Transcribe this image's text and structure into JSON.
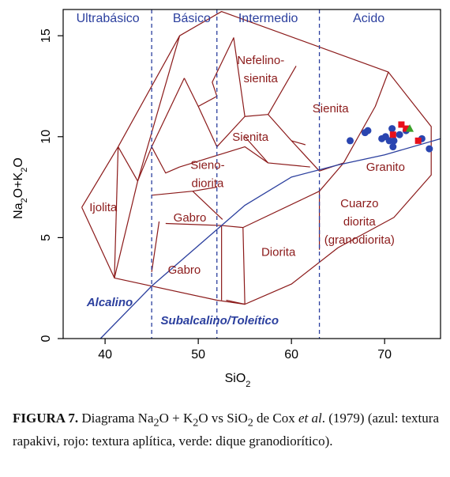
{
  "chart_data": {
    "type": "scatter",
    "xlabel": "SiO2",
    "ylabel": "Na2O+K2O",
    "xlim": [
      35.5,
      76
    ],
    "ylim": [
      0,
      16.3
    ],
    "x_ticks": [
      40,
      50,
      60,
      70
    ],
    "y_ticks": [
      0,
      5,
      10,
      15
    ],
    "colors": {
      "axis": "#000000",
      "fields": "#8b1a1a",
      "divider": "#2b3f9e",
      "labels_blue": "#2b3f9e",
      "labels_red": "#8b1a1a"
    },
    "classes": [
      {
        "label": "Ultrabásico",
        "x": 40.3,
        "y": 15.9
      },
      {
        "label": "Básico",
        "x": 49.3,
        "y": 15.9
      },
      {
        "label": "Intermedio",
        "x": 57.5,
        "y": 15.9
      },
      {
        "label": "Acido",
        "x": 68.3,
        "y": 15.9
      }
    ],
    "class_boundaries_x": [
      45,
      52,
      63
    ],
    "field_boundaries": [
      [
        [
          37.5,
          6.5
        ],
        [
          41,
          3
        ],
        [
          52,
          1.9
        ],
        [
          55,
          1.7
        ],
        [
          60,
          2.7
        ],
        [
          65,
          4.5
        ],
        [
          71,
          6
        ],
        [
          75,
          8.1
        ],
        [
          75,
          10.5
        ],
        [
          70.4,
          13.2
        ],
        [
          52.5,
          16.2
        ],
        [
          48,
          15
        ],
        [
          41.4,
          9.5
        ],
        [
          37.5,
          6.5
        ]
      ],
      [
        [
          41.4,
          9.5
        ],
        [
          41,
          3
        ]
      ],
      [
        [
          41.4,
          9.5
        ],
        [
          43.5,
          7.8
        ],
        [
          41,
          3
        ]
      ],
      [
        [
          43.5,
          7.8
        ],
        [
          48,
          15
        ]
      ],
      [
        [
          45,
          9.5
        ],
        [
          43.5,
          7.8
        ]
      ],
      [
        [
          45,
          9.5
        ],
        [
          46.5,
          8.2
        ],
        [
          48,
          8.5
        ]
      ],
      [
        [
          45,
          9.5
        ],
        [
          48.5,
          12.9
        ]
      ],
      [
        [
          48.5,
          12.9
        ],
        [
          50,
          11.5
        ],
        [
          52,
          9.5
        ],
        [
          55,
          11
        ]
      ],
      [
        [
          50,
          11.5
        ],
        [
          52,
          12
        ]
      ],
      [
        [
          52,
          12
        ],
        [
          51.5,
          12.7
        ],
        [
          53.8,
          14.9
        ],
        [
          55,
          11
        ]
      ],
      [
        [
          55,
          11
        ],
        [
          57.5,
          11.1
        ],
        [
          60,
          9.8
        ],
        [
          63,
          8.3
        ],
        [
          65.6,
          8.7
        ]
      ],
      [
        [
          57.5,
          11.1
        ],
        [
          60.5,
          13.5
        ]
      ],
      [
        [
          60,
          9.8
        ],
        [
          61.5,
          9.6
        ]
      ],
      [
        [
          65.6,
          8.7
        ],
        [
          69,
          11.5
        ],
        [
          70.4,
          13.2
        ]
      ],
      [
        [
          55,
          10
        ],
        [
          57.5,
          8.7
        ],
        [
          62,
          8.5
        ]
      ],
      [
        [
          48,
          8.5
        ],
        [
          55,
          9.5
        ],
        [
          57.5,
          8.7
        ]
      ],
      [
        [
          45,
          7.1
        ],
        [
          49.4,
          7.3
        ],
        [
          52,
          7.5
        ]
      ],
      [
        [
          49.4,
          7.3
        ],
        [
          52.6,
          5.9
        ]
      ],
      [
        [
          46.5,
          5.7
        ],
        [
          52.5,
          5.6
        ]
      ],
      [
        [
          52.5,
          5.6
        ],
        [
          52.5,
          1.9
        ]
      ],
      [
        [
          45.8,
          5.8
        ],
        [
          45,
          3.3
        ]
      ],
      [
        [
          52.5,
          5.6
        ],
        [
          54.8,
          5.5
        ],
        [
          55,
          1.7
        ]
      ],
      [
        [
          54.8,
          5.5
        ],
        [
          63,
          7.3
        ],
        [
          63,
          4.4
        ]
      ],
      [
        [
          63,
          7.3
        ],
        [
          65.6,
          8.7
        ]
      ],
      [
        [
          55,
          1.7
        ],
        [
          53,
          1.9
        ]
      ]
    ],
    "field_labels": [
      {
        "label": "Nefelino-",
        "x": 56.7,
        "y": 13.8
      },
      {
        "label": "sienita",
        "x": 56.7,
        "y": 12.9
      },
      {
        "label": "Sienita",
        "x": 64.2,
        "y": 11.4
      },
      {
        "label": "Sienita",
        "x": 55.6,
        "y": 10.0
      },
      {
        "label": "Sieno-",
        "x": 51.0,
        "y": 8.6
      },
      {
        "label": "diorita",
        "x": 51.0,
        "y": 7.7
      },
      {
        "label": "Ijolita",
        "x": 39.8,
        "y": 6.5
      },
      {
        "label": "Gabro",
        "x": 49.1,
        "y": 6.0
      },
      {
        "label": "Gabro",
        "x": 48.5,
        "y": 3.4
      },
      {
        "label": "Diorita",
        "x": 58.6,
        "y": 4.3
      },
      {
        "label": "Granito",
        "x": 70.1,
        "y": 8.5
      },
      {
        "label": "Cuarzo",
        "x": 67.3,
        "y": 6.7
      },
      {
        "label": "diorita",
        "x": 67.3,
        "y": 5.8
      },
      {
        "label": "(granodiorita)",
        "x": 67.3,
        "y": 4.9
      }
    ],
    "divider_line": [
      [
        39.5,
        0
      ],
      [
        45,
        2.6
      ],
      [
        50,
        4.6
      ],
      [
        55,
        6.6
      ],
      [
        60,
        8
      ],
      [
        65,
        8.6
      ],
      [
        70,
        9.1
      ],
      [
        76,
        9.9
      ]
    ],
    "divider_labels": [
      {
        "label": "Alcalino",
        "x": 40.5,
        "y": 1.8
      },
      {
        "label": "Subalcalino/Toleítico",
        "x": 52.3,
        "y": 0.9
      }
    ],
    "series": [
      {
        "color": "#2a45b0",
        "marker": "circle",
        "points": [
          [
            66.3,
            9.8
          ],
          [
            67.9,
            10.2
          ],
          [
            68.2,
            10.3
          ],
          [
            69.7,
            9.9
          ],
          [
            70.1,
            10.0
          ],
          [
            70.5,
            9.8
          ],
          [
            70.8,
            10.4
          ],
          [
            71.0,
            9.8
          ],
          [
            70.9,
            9.5
          ],
          [
            71.6,
            10.1
          ],
          [
            72.3,
            10.3
          ],
          [
            74.0,
            9.9
          ],
          [
            74.8,
            9.4
          ]
        ]
      },
      {
        "color": "#e8101a",
        "marker": "square",
        "points": [
          [
            71.8,
            10.6
          ],
          [
            72.3,
            10.4
          ],
          [
            73.6,
            9.8
          ],
          [
            70.9,
            10.1
          ]
        ]
      },
      {
        "color": "#3aa028",
        "marker": "triangle",
        "points": [
          [
            72.7,
            10.4
          ]
        ]
      }
    ]
  },
  "caption": {
    "figure": "FIGURA 7.",
    "text_1": " Diagrama Na",
    "sub_1": "2",
    "text_2": "O + K",
    "sub_2": "2",
    "text_3": "O vs SiO",
    "sub_3": "2",
    "text_4": " de Cox ",
    "italic": "et al",
    "text_5": ". (1979) (azul: textura rapakivi, rojo: textura aplítica, verde: dique granodiorítico)."
  }
}
